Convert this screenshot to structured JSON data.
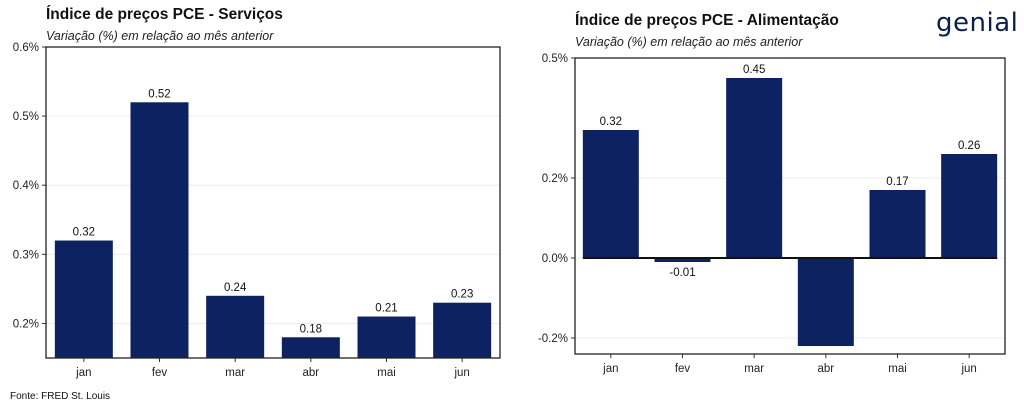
{
  "logo_text": "genial",
  "source": "Fonte: FRED St. Louis",
  "charts": [
    {
      "title": "Índice de preços PCE - Serviços",
      "subtitle": "Variação (%) em relação ao mês anterior",
      "bar_color": "#0d2260"
    },
    {
      "title": "Índice de preços PCE - Alimentação",
      "subtitle": "Variação (%) em relação ao mês anterior",
      "bar_color": "#0d2260"
    }
  ],
  "chart_data": [
    {
      "type": "bar",
      "title": "Índice de preços PCE - Serviços",
      "categories": [
        "jan",
        "fev",
        "mar",
        "abr",
        "mai",
        "jun"
      ],
      "values": [
        0.32,
        0.52,
        0.24,
        0.18,
        0.21,
        0.23
      ],
      "data_labels": [
        "0.32",
        "0.52",
        "0.24",
        "0.18",
        "0.21",
        "0.23"
      ],
      "ylim": [
        0.15,
        0.6
      ],
      "yticks": [
        0.2,
        0.3,
        0.4,
        0.5,
        0.6
      ],
      "ytick_labels": [
        "0.2%",
        "0.3%",
        "0.4%",
        "0.5%",
        "0.6%"
      ],
      "grid": true
    },
    {
      "type": "bar",
      "title": "Índice de preços PCE - Alimentação",
      "categories": [
        "jan",
        "fev",
        "mar",
        "abr",
        "mai",
        "jun"
      ],
      "values": [
        0.32,
        -0.01,
        0.45,
        -0.22,
        0.17,
        0.26
      ],
      "data_labels": [
        "0.32",
        "-0.01",
        "0.45",
        "",
        "0.17",
        "0.26"
      ],
      "ylim": [
        -0.24,
        0.5
      ],
      "yticks": [
        -0.2,
        0.0,
        0.2,
        0.5
      ],
      "ytick_labels": [
        "-0.2%",
        "0.0%",
        "0.2%",
        "0.5%"
      ],
      "grid": true
    }
  ]
}
